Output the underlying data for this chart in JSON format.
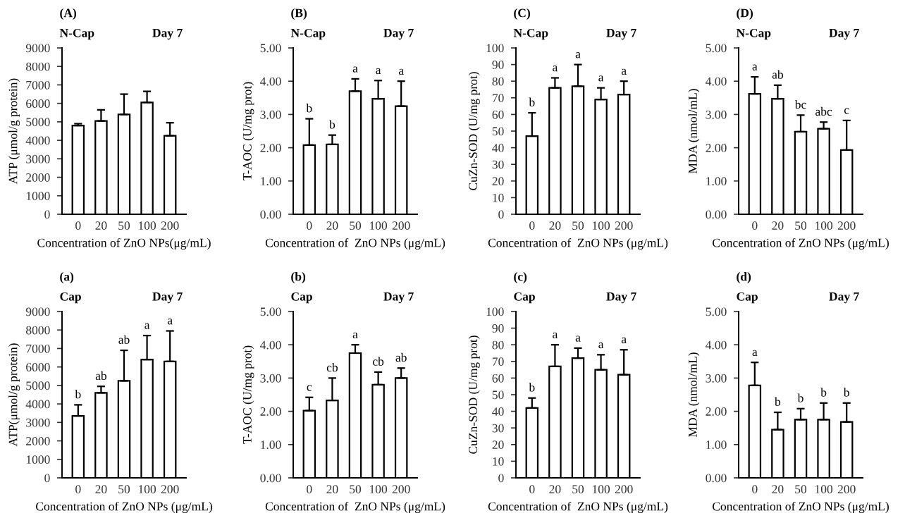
{
  "chart_data": [
    {
      "type": "bar",
      "title": "(A)",
      "subtitle": "N-Cap",
      "ylabel": "ATP (μmol/g protein)",
      "xlabel": "Concentration of ZnO NPs(μg/mL)",
      "categories": [
        "0",
        "20",
        "50",
        "100",
        "200"
      ],
      "color": "#ffffff",
      "values": [
        4800,
        5050,
        5400,
        6050,
        4250
      ],
      "errors": [
        [
          4800,
          4900
        ],
        [
          5050,
          5650
        ],
        [
          5400,
          6500
        ],
        [
          6050,
          6650
        ],
        [
          4250,
          4950
        ]
      ],
      "ylim": [
        0,
        9000
      ],
      "yticks": [
        0,
        1000,
        2000,
        3000,
        4000,
        5000,
        6000,
        7000,
        8000,
        9000
      ],
      "grid": false,
      "annotations": [
        "Day 7"
      ]
    },
    {
      "type": "bar",
      "title": "(B)",
      "subtitle": "N-Cap",
      "ylabel": "T-AOC (U/mg prot)",
      "xlabel": "Concentration of  ZnO NPs (μg/mL)",
      "categories": [
        "0",
        "20",
        "50",
        "100",
        "200"
      ],
      "color": "#ffffff",
      "values": [
        2.08,
        2.1,
        3.7,
        3.47,
        3.25
      ],
      "errors": [
        [
          2.08,
          2.87
        ],
        [
          2.1,
          2.38
        ],
        [
          3.7,
          4.07
        ],
        [
          3.47,
          4.02
        ],
        [
          3.25,
          4.0
        ]
      ],
      "ylim": [
        0,
        5
      ],
      "yticks": [
        {
          "value": 0,
          "label": "0.00"
        },
        {
          "value": 1,
          "label": "1.00"
        },
        {
          "value": 2,
          "label": "2.00"
        },
        {
          "value": 3,
          "label": "3.00"
        },
        {
          "value": 4,
          "label": "4.00"
        },
        {
          "value": 5,
          "label": "5.00"
        }
      ],
      "grid": false,
      "annotations": [
        "Day 7",
        {
          "text": "b",
          "x": "0",
          "y": 2.87
        },
        {
          "text": "b",
          "x": "20",
          "y": 2.38
        },
        {
          "text": "a",
          "x": "50",
          "y": 4.07
        },
        {
          "text": "a",
          "x": "100",
          "y": 4.02
        },
        {
          "text": "a",
          "x": "200",
          "y": 4.0
        }
      ]
    },
    {
      "type": "bar",
      "title": "(C)",
      "subtitle": "N-Cap",
      "ylabel": "CuZn-SOD (U/mg prot)",
      "xlabel": "Concentration of  ZnO NPs (μg/mL)",
      "categories": [
        "0",
        "20",
        "50",
        "100",
        "200"
      ],
      "color": "#ffffff",
      "values": [
        47,
        76,
        77,
        69,
        72
      ],
      "errors": [
        [
          47,
          61
        ],
        [
          76,
          82
        ],
        [
          77,
          90
        ],
        [
          69,
          76
        ],
        [
          72,
          80
        ]
      ],
      "ylim": [
        0,
        100
      ],
      "yticks": [
        0,
        10,
        20,
        30,
        40,
        50,
        60,
        70,
        80,
        90,
        100
      ],
      "grid": false,
      "annotations": [
        "Day 7",
        {
          "text": "b",
          "x": "0",
          "y": 61
        },
        {
          "text": "a",
          "x": "20",
          "y": 82
        },
        {
          "text": "a",
          "x": "50",
          "y": 90
        },
        {
          "text": "a",
          "x": "100",
          "y": 76
        },
        {
          "text": "a",
          "x": "200",
          "y": 80
        }
      ]
    },
    {
      "type": "bar",
      "title": "(D)",
      "subtitle": "N-Cap",
      "ylabel": "MDA (nmol/mL)",
      "xlabel": "Concentration of ZnO NPs (μg/mL)",
      "categories": [
        "0",
        "20",
        "50",
        "100",
        "200"
      ],
      "color": "#ffffff",
      "values": [
        3.62,
        3.47,
        2.48,
        2.57,
        1.93
      ],
      "errors": [
        [
          3.62,
          4.13
        ],
        [
          3.47,
          3.88
        ],
        [
          2.48,
          2.98
        ],
        [
          2.57,
          2.77
        ],
        [
          1.93,
          2.82
        ]
      ],
      "ylim": [
        0,
        5
      ],
      "yticks": [
        {
          "value": 0,
          "label": "0.00"
        },
        {
          "value": 1,
          "label": "1.00"
        },
        {
          "value": 2,
          "label": "2.00"
        },
        {
          "value": 3,
          "label": "3.00"
        },
        {
          "value": 4,
          "label": "4.00"
        },
        {
          "value": 5,
          "label": "5.00"
        }
      ],
      "grid": false,
      "annotations": [
        "Day 7",
        {
          "text": "a",
          "x": "0",
          "y": 4.13
        },
        {
          "text": "ab",
          "x": "20",
          "y": 3.88
        },
        {
          "text": "bc",
          "x": "50",
          "y": 2.98
        },
        {
          "text": "abc",
          "x": "100",
          "y": 2.77
        },
        {
          "text": "c",
          "x": "200",
          "y": 2.82
        }
      ]
    },
    {
      "type": "bar",
      "title": "(a)",
      "subtitle": "Cap",
      "ylabel": "ATP(μmol/g protein)",
      "xlabel": "Concentration of ZnO NPs (μg/mL)",
      "categories": [
        "0",
        "20",
        "50",
        "100",
        "200"
      ],
      "color": "#ffffff",
      "values": [
        3350,
        4600,
        5250,
        6400,
        6300
      ],
      "errors": [
        [
          3350,
          3950
        ],
        [
          4600,
          4950
        ],
        [
          5250,
          6900
        ],
        [
          6400,
          7700
        ],
        [
          6300,
          7950
        ]
      ],
      "ylim": [
        0,
        9000
      ],
      "yticks": [
        0,
        1000,
        2000,
        3000,
        4000,
        5000,
        6000,
        7000,
        8000,
        9000
      ],
      "grid": false,
      "annotations": [
        "Day 7",
        {
          "text": "b",
          "x": "0",
          "y": 3950
        },
        {
          "text": "ab",
          "x": "20",
          "y": 4950
        },
        {
          "text": "ab",
          "x": "50",
          "y": 6900
        },
        {
          "text": "a",
          "x": "100",
          "y": 7700
        },
        {
          "text": "a",
          "x": "200",
          "y": 7950
        }
      ]
    },
    {
      "type": "bar",
      "title": "(b)",
      "subtitle": "Cap",
      "ylabel": "T-AOC (U/mg prot)",
      "xlabel": "Concentration of  ZnO NPs (μg/mL)",
      "categories": [
        "0",
        "20",
        "50",
        "100",
        "200"
      ],
      "color": "#ffffff",
      "values": [
        2.02,
        2.33,
        3.75,
        2.8,
        3.0
      ],
      "errors": [
        [
          2.02,
          2.42
        ],
        [
          2.33,
          3.0
        ],
        [
          3.75,
          4.0
        ],
        [
          2.8,
          3.18
        ],
        [
          3.0,
          3.3
        ]
      ],
      "ylim": [
        0,
        5
      ],
      "yticks": [
        {
          "value": 0,
          "label": "0.00"
        },
        {
          "value": 1,
          "label": "1.00"
        },
        {
          "value": 2,
          "label": "2.00"
        },
        {
          "value": 3,
          "label": "3.00"
        },
        {
          "value": 4,
          "label": "4.00"
        },
        {
          "value": 5,
          "label": "5.00"
        }
      ],
      "grid": false,
      "annotations": [
        "Day 7",
        {
          "text": "c",
          "x": "0",
          "y": 2.42
        },
        {
          "text": "cb",
          "x": "20",
          "y": 3.0
        },
        {
          "text": "a",
          "x": "50",
          "y": 4.0
        },
        {
          "text": "cb",
          "x": "100",
          "y": 3.18
        },
        {
          "text": "ab",
          "x": "200",
          "y": 3.3
        }
      ]
    },
    {
      "type": "bar",
      "title": "(c)",
      "subtitle": "Cap",
      "ylabel": "CuZn-SOD (U/mg prot)",
      "xlabel": "Concentration of  ZnO NPs (μg/mL)",
      "categories": [
        "0",
        "20",
        "50",
        "100",
        "200"
      ],
      "color": "#ffffff",
      "values": [
        42,
        67,
        72,
        65,
        62
      ],
      "errors": [
        [
          42,
          48
        ],
        [
          67,
          80
        ],
        [
          72,
          78
        ],
        [
          65,
          74
        ],
        [
          62,
          77
        ]
      ],
      "ylim": [
        0,
        100
      ],
      "yticks": [
        0,
        10,
        20,
        30,
        40,
        50,
        60,
        70,
        80,
        90,
        100
      ],
      "grid": false,
      "annotations": [
        "Day 7",
        {
          "text": "b",
          "x": "0",
          "y": 48
        },
        {
          "text": "a",
          "x": "20",
          "y": 80
        },
        {
          "text": "a",
          "x": "50",
          "y": 78
        },
        {
          "text": "a",
          "x": "100",
          "y": 74
        },
        {
          "text": "a",
          "x": "200",
          "y": 77
        }
      ]
    },
    {
      "type": "bar",
      "title": "(d)",
      "subtitle": "Cap",
      "ylabel": "MDA (nmol/mL)",
      "xlabel": "Concentration of ZnO NPs (μg/mL)",
      "categories": [
        "0",
        "20",
        "50",
        "100",
        "200"
      ],
      "color": "#ffffff",
      "values": [
        2.78,
        1.45,
        1.75,
        1.75,
        1.68
      ],
      "errors": [
        [
          2.78,
          3.47
        ],
        [
          1.45,
          1.97
        ],
        [
          1.75,
          2.08
        ],
        [
          1.75,
          2.25
        ],
        [
          1.68,
          2.25
        ]
      ],
      "ylim": [
        0,
        5
      ],
      "yticks": [
        {
          "value": 0,
          "label": "0.00"
        },
        {
          "value": 1,
          "label": "1.00"
        },
        {
          "value": 2,
          "label": "2.00"
        },
        {
          "value": 3,
          "label": "3.00"
        },
        {
          "value": 4,
          "label": "4.00"
        },
        {
          "value": 5,
          "label": "5.00"
        }
      ],
      "grid": false,
      "annotations": [
        "Day 7",
        {
          "text": "a",
          "x": "0",
          "y": 3.47
        },
        {
          "text": "b",
          "x": "20",
          "y": 1.97
        },
        {
          "text": "b",
          "x": "50",
          "y": 2.08
        },
        {
          "text": "b",
          "x": "100",
          "y": 2.25
        },
        {
          "text": "b",
          "x": "200",
          "y": 2.25
        }
      ]
    }
  ]
}
